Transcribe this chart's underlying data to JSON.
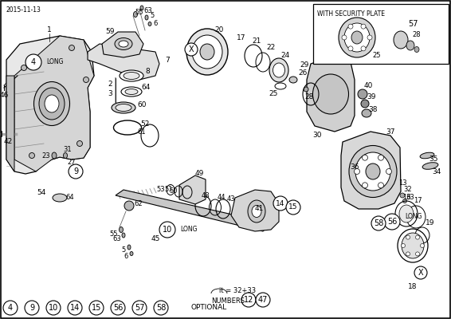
{
  "title_date": "2015-11-13",
  "bg": "#ffffff",
  "figsize": [
    5.66,
    4.0
  ],
  "dpi": 100,
  "inset_title": "WITH SECURITY PLATE",
  "bottom_text1": "it = 32+33",
  "bottom_text2": "NUMBERS",
  "optional_text": "OPTIONAL",
  "opt_circles": [
    4,
    9,
    10,
    14,
    15,
    56,
    57,
    58
  ],
  "note_circles": [
    12,
    47
  ]
}
